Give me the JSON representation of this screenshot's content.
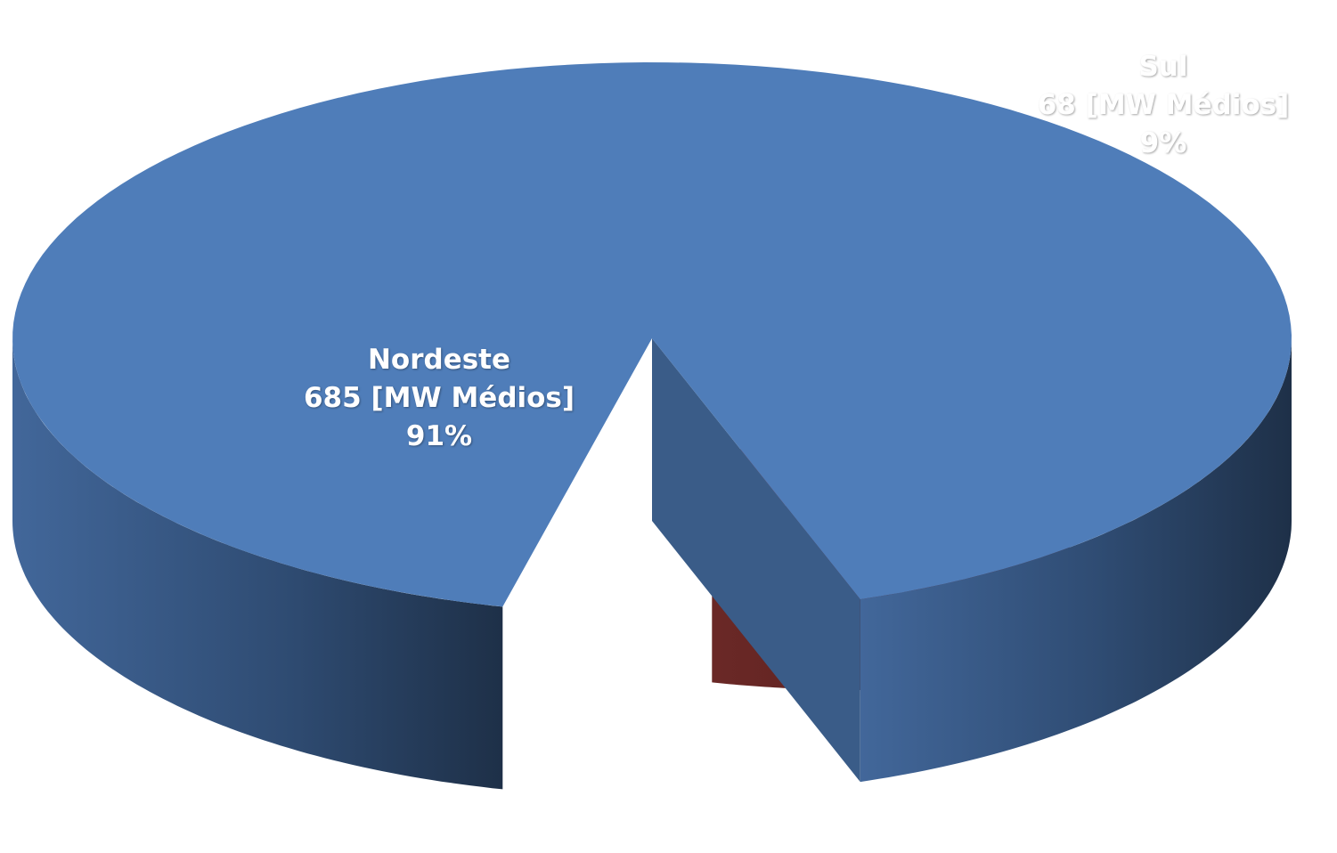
{
  "chart_data": {
    "type": "pie",
    "style": "3d exploded",
    "unit": "MW Médios",
    "slices": [
      {
        "name": "Nordeste",
        "value": 685,
        "value_label": "685 [MW Médios]",
        "percent_label": "91%",
        "color": "#4F7DB9",
        "color_dark": "#22344F"
      },
      {
        "name": "Sul",
        "value": 68,
        "value_label": "68 [MW Médios]",
        "percent_label": "9%",
        "color": "#C0504D",
        "color_dark": "#5E2422"
      }
    ]
  }
}
